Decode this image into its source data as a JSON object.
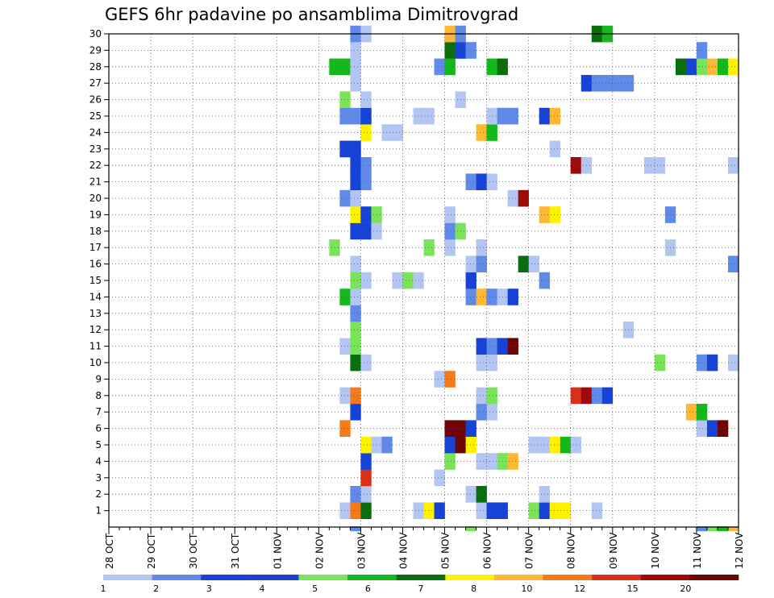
{
  "chart_data": {
    "type": "heatmap",
    "title": "GEFS 6hr padavine po ansamblima Dimitrovgrad",
    "xlabel": "",
    "ylabel": "",
    "x_tick_labels": [
      "28 OCT",
      "29 OCT",
      "30 OCT",
      "31 OCT",
      "01 NOV",
      "02 NOV",
      "03 NOV",
      "04 NOV",
      "05 NOV",
      "06 NOV",
      "07 NOV",
      "08 NOV",
      "09 NOV",
      "10 NOV",
      "11 NOV",
      "12 NOV"
    ],
    "y_tick_labels": [
      "1",
      "2",
      "3",
      "4",
      "5",
      "6",
      "7",
      "8",
      "9",
      "10",
      "11",
      "12",
      "13",
      "14",
      "15",
      "16",
      "17",
      "18",
      "19",
      "20",
      "21",
      "22",
      "23",
      "24",
      "25",
      "26",
      "27",
      "28",
      "29",
      "30"
    ],
    "x_unit": "6-hour steps from 28 OCT 00Z",
    "steps_per_day": 4,
    "y_range": [
      0,
      30
    ],
    "grid": "dotted",
    "colorbar": {
      "labels": [
        "1",
        "2",
        "3",
        "4",
        "5",
        "6",
        "7",
        "8",
        "10",
        "12",
        "15",
        "20"
      ],
      "colors": [
        "#b3c6f3",
        "#5f8ae8",
        "#1742d6",
        "#1c3fd0",
        "#7be35a",
        "#15b81a",
        "#0a6e0e",
        "#fff200",
        "#ffb836",
        "#f47b1c",
        "#d9301a",
        "#9e0a0a",
        "#6e0505"
      ]
    },
    "cells": [
      [
        1,
        22,
        0
      ],
      [
        1,
        23,
        9
      ],
      [
        1,
        24,
        6
      ],
      [
        1,
        29,
        0
      ],
      [
        1,
        30,
        7
      ],
      [
        1,
        31,
        2
      ],
      [
        1,
        35,
        0
      ],
      [
        1,
        36,
        2
      ],
      [
        1,
        37,
        2
      ],
      [
        1,
        40,
        4
      ],
      [
        1,
        41,
        2
      ],
      [
        1,
        42,
        7
      ],
      [
        1,
        43,
        7
      ],
      [
        1,
        46,
        0
      ],
      [
        2,
        23,
        1
      ],
      [
        2,
        24,
        0
      ],
      [
        2,
        34,
        0
      ],
      [
        2,
        35,
        6
      ],
      [
        2,
        41,
        0
      ],
      [
        3,
        24,
        10
      ],
      [
        3,
        31,
        0
      ],
      [
        4,
        24,
        2
      ],
      [
        4,
        32,
        4
      ],
      [
        4,
        35,
        0
      ],
      [
        4,
        36,
        0
      ],
      [
        4,
        37,
        4
      ],
      [
        4,
        38,
        8
      ],
      [
        5,
        24,
        7
      ],
      [
        5,
        25,
        0
      ],
      [
        5,
        26,
        1
      ],
      [
        5,
        32,
        2
      ],
      [
        5,
        33,
        12
      ],
      [
        5,
        34,
        7
      ],
      [
        5,
        40,
        0
      ],
      [
        5,
        41,
        0
      ],
      [
        5,
        42,
        7
      ],
      [
        5,
        43,
        5
      ],
      [
        5,
        44,
        0
      ],
      [
        6,
        22,
        9
      ],
      [
        6,
        32,
        12
      ],
      [
        6,
        33,
        12
      ],
      [
        6,
        34,
        2
      ],
      [
        6,
        56,
        0
      ],
      [
        6,
        57,
        2
      ],
      [
        6,
        58,
        12
      ],
      [
        7,
        23,
        2
      ],
      [
        7,
        35,
        1
      ],
      [
        7,
        36,
        0
      ],
      [
        7,
        55,
        8
      ],
      [
        7,
        56,
        5
      ],
      [
        8,
        22,
        0
      ],
      [
        8,
        23,
        9
      ],
      [
        8,
        35,
        0
      ],
      [
        8,
        36,
        4
      ],
      [
        8,
        44,
        10
      ],
      [
        8,
        45,
        11
      ],
      [
        8,
        46,
        1
      ],
      [
        8,
        47,
        2
      ],
      [
        9,
        31,
        0
      ],
      [
        9,
        32,
        9
      ],
      [
        10,
        23,
        6
      ],
      [
        10,
        24,
        0
      ],
      [
        10,
        35,
        0
      ],
      [
        10,
        36,
        0
      ],
      [
        10,
        52,
        4
      ],
      [
        10,
        56,
        1
      ],
      [
        10,
        57,
        2
      ],
      [
        10,
        59,
        0
      ],
      [
        11,
        22,
        0
      ],
      [
        11,
        23,
        4
      ],
      [
        11,
        35,
        2
      ],
      [
        11,
        36,
        1
      ],
      [
        11,
        37,
        2
      ],
      [
        11,
        38,
        12
      ],
      [
        12,
        23,
        4
      ],
      [
        12,
        49,
        0
      ],
      [
        13,
        23,
        1
      ],
      [
        14,
        22,
        5
      ],
      [
        14,
        23,
        0
      ],
      [
        14,
        34,
        1
      ],
      [
        14,
        35,
        8
      ],
      [
        14,
        36,
        1
      ],
      [
        14,
        37,
        0
      ],
      [
        14,
        38,
        2
      ],
      [
        15,
        23,
        4
      ],
      [
        15,
        24,
        0
      ],
      [
        15,
        27,
        0
      ],
      [
        15,
        28,
        4
      ],
      [
        15,
        29,
        0
      ],
      [
        15,
        34,
        2
      ],
      [
        15,
        41,
        1
      ],
      [
        16,
        23,
        0
      ],
      [
        16,
        34,
        0
      ],
      [
        16,
        35,
        1
      ],
      [
        16,
        39,
        6
      ],
      [
        16,
        40,
        0
      ],
      [
        16,
        59,
        1
      ],
      [
        17,
        21,
        4
      ],
      [
        17,
        30,
        4
      ],
      [
        17,
        32,
        0
      ],
      [
        17,
        35,
        0
      ],
      [
        17,
        53,
        0
      ],
      [
        18,
        23,
        2
      ],
      [
        18,
        24,
        2
      ],
      [
        18,
        25,
        0
      ],
      [
        18,
        32,
        1
      ],
      [
        18,
        33,
        4
      ],
      [
        19,
        23,
        7
      ],
      [
        19,
        24,
        2
      ],
      [
        19,
        25,
        4
      ],
      [
        19,
        32,
        0
      ],
      [
        19,
        41,
        8
      ],
      [
        19,
        42,
        7
      ],
      [
        19,
        53,
        1
      ],
      [
        20,
        22,
        1
      ],
      [
        20,
        23,
        0
      ],
      [
        20,
        38,
        0
      ],
      [
        20,
        39,
        11
      ],
      [
        21,
        23,
        2
      ],
      [
        21,
        24,
        1
      ],
      [
        21,
        34,
        1
      ],
      [
        21,
        35,
        2
      ],
      [
        21,
        36,
        0
      ],
      [
        22,
        23,
        2
      ],
      [
        22,
        24,
        1
      ],
      [
        22,
        44,
        11
      ],
      [
        22,
        45,
        0
      ],
      [
        22,
        51,
        0
      ],
      [
        22,
        52,
        0
      ],
      [
        22,
        59,
        0
      ],
      [
        23,
        22,
        2
      ],
      [
        23,
        23,
        2
      ],
      [
        23,
        42,
        0
      ],
      [
        24,
        24,
        7
      ],
      [
        24,
        26,
        0
      ],
      [
        24,
        27,
        0
      ],
      [
        24,
        35,
        8
      ],
      [
        24,
        36,
        5
      ],
      [
        25,
        22,
        1
      ],
      [
        25,
        23,
        1
      ],
      [
        25,
        24,
        2
      ],
      [
        25,
        29,
        0
      ],
      [
        25,
        30,
        0
      ],
      [
        25,
        36,
        0
      ],
      [
        25,
        37,
        1
      ],
      [
        25,
        38,
        1
      ],
      [
        25,
        41,
        2
      ],
      [
        25,
        42,
        8
      ],
      [
        26,
        22,
        4
      ],
      [
        26,
        24,
        0
      ],
      [
        26,
        33,
        0
      ],
      [
        27,
        23,
        0
      ],
      [
        27,
        45,
        2
      ],
      [
        27,
        46,
        1
      ],
      [
        27,
        47,
        1
      ],
      [
        27,
        48,
        1
      ],
      [
        27,
        49,
        1
      ],
      [
        28,
        21,
        5
      ],
      [
        28,
        22,
        5
      ],
      [
        28,
        23,
        0
      ],
      [
        28,
        31,
        1
      ],
      [
        28,
        32,
        5
      ],
      [
        28,
        36,
        5
      ],
      [
        28,
        37,
        6
      ],
      [
        28,
        54,
        6
      ],
      [
        28,
        55,
        2
      ],
      [
        28,
        56,
        4
      ],
      [
        28,
        57,
        8
      ],
      [
        28,
        58,
        5
      ],
      [
        28,
        59,
        7
      ],
      [
        29,
        23,
        0
      ],
      [
        29,
        32,
        6
      ],
      [
        29,
        33,
        2
      ],
      [
        29,
        34,
        1
      ],
      [
        29,
        56,
        1
      ],
      [
        30,
        23,
        1
      ],
      [
        30,
        24,
        0
      ],
      [
        30,
        32,
        8
      ],
      [
        30,
        33,
        1
      ],
      [
        30,
        46,
        6
      ],
      [
        30,
        47,
        5
      ],
      [
        0,
        23,
        1
      ],
      [
        0,
        34,
        4
      ],
      [
        0,
        56,
        1
      ],
      [
        0,
        57,
        4
      ],
      [
        0,
        58,
        5
      ],
      [
        0,
        59,
        8
      ]
    ]
  }
}
